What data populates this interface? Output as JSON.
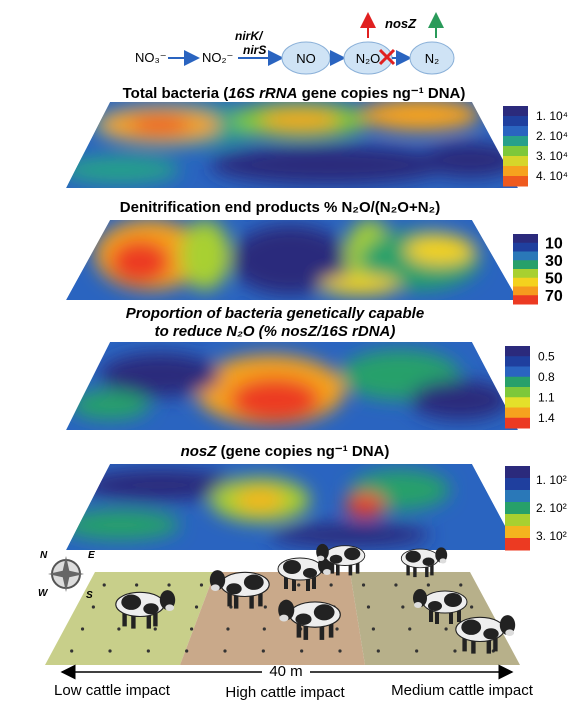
{
  "pathway": {
    "nodes": [
      "NO₃⁻",
      "NO₂⁻",
      "NO",
      "N₂O",
      "N₂"
    ],
    "enzyme_top": "nirK/",
    "enzyme_bottom": "nirS",
    "reductase": "nosZ"
  },
  "panels": [
    {
      "title": [
        "Total bacteria (",
        "16S rRNA",
        " gene copies ng⁻¹ DNA)"
      ],
      "legend_labels": [
        "1. 10⁴",
        "2. 10⁴",
        "3. 10⁴",
        "4. 10⁴"
      ],
      "legend_colors": [
        "#2b2a7c",
        "#1f3f9e",
        "#2a64c0",
        "#27a08a",
        "#7ec83a",
        "#d6d62a",
        "#f6a21e",
        "#ef5a1e"
      ]
    },
    {
      "title": [
        "Denitrification end products % N₂O/(N₂O+N₂)"
      ],
      "legend_labels": [
        "10",
        "30",
        "50",
        "70"
      ],
      "legend_colors": [
        "#2b2a7c",
        "#1f3f9e",
        "#2a78b8",
        "#27a06a",
        "#a8d030",
        "#f4d21e",
        "#f69a1e",
        "#ec3a22"
      ]
    },
    {
      "title": [
        "Proportion of bacteria genetically capable",
        "to reduce N₂O (% nosZ/16S rDNA)"
      ],
      "legend_labels": [
        "0.5",
        "0.8",
        "1.1",
        "1.4"
      ],
      "legend_colors": [
        "#2b2a7c",
        "#1f3f9e",
        "#2a64c0",
        "#27a06a",
        "#7ec83a",
        "#e4e02a",
        "#f6a21e",
        "#ec3a22"
      ]
    },
    {
      "title": [
        "nosZ",
        " (gene copies ng⁻¹ DNA)"
      ],
      "legend_labels": [
        "1. 10²",
        "2. 10²",
        "3. 10²"
      ],
      "legend_colors": [
        "#2b2a7c",
        "#1f3f9e",
        "#2a78b8",
        "#27a06a",
        "#a8d030",
        "#f4b41e",
        "#ec3a22"
      ]
    }
  ],
  "field": {
    "distance": "40 m",
    "zones": [
      "Low cattle impact",
      "High cattle impact",
      "Medium cattle impact"
    ],
    "compass": [
      "N",
      "E",
      "W",
      "S"
    ]
  }
}
